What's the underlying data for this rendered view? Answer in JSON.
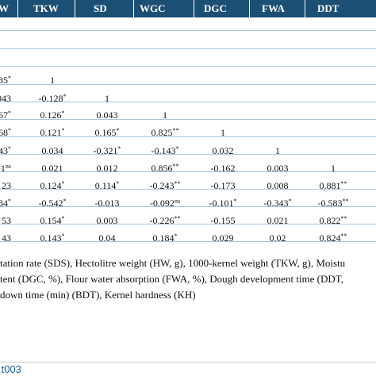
{
  "table": {
    "headers": [
      "W",
      "TKW",
      "SD",
      "WGC",
      "DGC",
      "FWA",
      "DDT"
    ],
    "rows": [
      [
        {
          "v": "85",
          "s": "*"
        },
        {
          "v": "1",
          "s": ""
        },
        {
          "v": "",
          "s": ""
        },
        {
          "v": "",
          "s": ""
        },
        {
          "v": "",
          "s": ""
        },
        {
          "v": "",
          "s": ""
        },
        {
          "v": "",
          "s": ""
        }
      ],
      [
        {
          "v": "043",
          "s": ""
        },
        {
          "v": "-0.128",
          "s": "*"
        },
        {
          "v": "1",
          "s": ""
        },
        {
          "v": "",
          "s": ""
        },
        {
          "v": "",
          "s": ""
        },
        {
          "v": "",
          "s": ""
        },
        {
          "v": "",
          "s": ""
        }
      ],
      [
        {
          "v": "67",
          "s": "*"
        },
        {
          "v": "0.126",
          "s": "*"
        },
        {
          "v": "0.043",
          "s": ""
        },
        {
          "v": "1",
          "s": ""
        },
        {
          "v": "",
          "s": ""
        },
        {
          "v": "",
          "s": ""
        },
        {
          "v": "",
          "s": ""
        }
      ],
      [
        {
          "v": "68",
          "s": "*"
        },
        {
          "v": "0.121",
          "s": "*"
        },
        {
          "v": "0.165",
          "s": "*"
        },
        {
          "v": "0.825",
          "s": "**"
        },
        {
          "v": "1",
          "s": ""
        },
        {
          "v": "",
          "s": ""
        },
        {
          "v": "",
          "s": ""
        }
      ],
      [
        {
          "v": "43",
          "s": "*"
        },
        {
          "v": "0.034",
          "s": ""
        },
        {
          "v": "-0.321",
          "s": "*"
        },
        {
          "v": "-0.143",
          "s": "*"
        },
        {
          "v": "0.032",
          "s": ""
        },
        {
          "v": "1",
          "s": ""
        },
        {
          "v": "",
          "s": ""
        }
      ],
      [
        {
          "v": "-1",
          "s": "ns"
        },
        {
          "v": "0.021",
          "s": ""
        },
        {
          "v": "0.012",
          "s": ""
        },
        {
          "v": "0.856",
          "s": "**"
        },
        {
          "v": "-0.162",
          "s": ""
        },
        {
          "v": "0.003",
          "s": ""
        },
        {
          "v": "1",
          "s": ""
        }
      ],
      [
        {
          "v": "23",
          "s": ""
        },
        {
          "v": "0.124",
          "s": "*"
        },
        {
          "v": "0.114",
          "s": "*"
        },
        {
          "v": "-0.243",
          "s": "**"
        },
        {
          "v": "-0.173",
          "s": ""
        },
        {
          "v": "0.008",
          "s": ""
        },
        {
          "v": "0.881",
          "s": "**"
        }
      ],
      [
        {
          "v": "84",
          "s": "*"
        },
        {
          "v": "-0.542",
          "s": "*"
        },
        {
          "v": "-0.013",
          "s": ""
        },
        {
          "v": "-0.092",
          "s": "ns"
        },
        {
          "v": "-0.101",
          "s": "*"
        },
        {
          "v": "-0.343",
          "s": "*"
        },
        {
          "v": "-0.583",
          "s": "**"
        }
      ],
      [
        {
          "v": "53",
          "s": ""
        },
        {
          "v": "0.154",
          "s": "*"
        },
        {
          "v": "0.003",
          "s": ""
        },
        {
          "v": "-0.226",
          "s": "**"
        },
        {
          "v": "-0.155",
          "s": ""
        },
        {
          "v": "0.021",
          "s": ""
        },
        {
          "v": "0.822",
          "s": "**"
        }
      ],
      [
        {
          "v": "43",
          "s": ""
        },
        {
          "v": "0.143",
          "s": "*"
        },
        {
          "v": "0.04",
          "s": ""
        },
        {
          "v": "0.184",
          "s": "*"
        },
        {
          "v": "0.029",
          "s": ""
        },
        {
          "v": "0.02",
          "s": ""
        },
        {
          "v": "0.824",
          "s": "**"
        }
      ]
    ]
  },
  "footnotes": [
    "tation rate (SDS), Hectolitre weight (HW, g), 1000-kernel weight (TKW, g), Moistu",
    "tent (DGC, %), Flour water absorption (FWA, %), Dough development time (DDT,",
    " down time (min) (BDT), Kernel hardness (KH)"
  ],
  "doi_fragment": ".t003",
  "colors": {
    "header_bg": "#1c4f74",
    "row_line": "#a9c4dc",
    "link": "#1a5f96"
  }
}
